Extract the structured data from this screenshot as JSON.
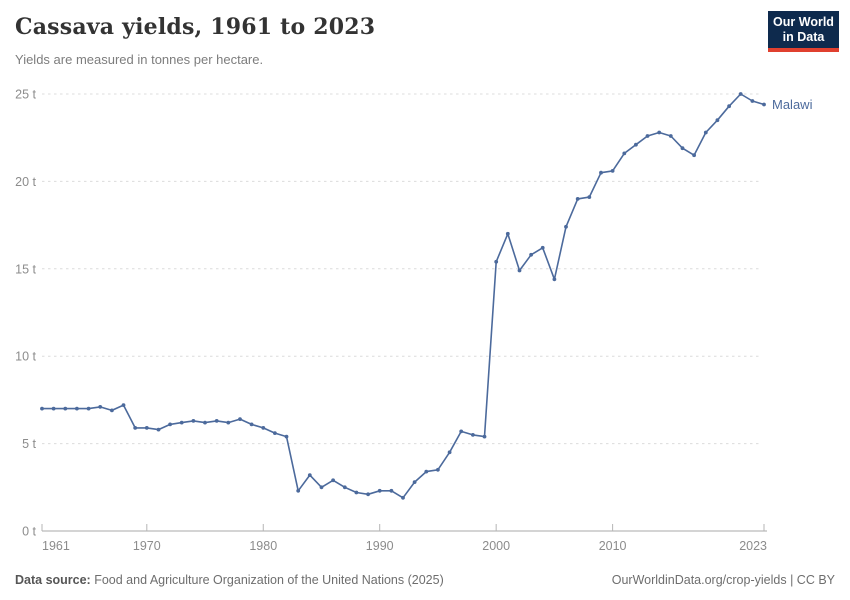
{
  "header": {
    "title": "Cassava yields, 1961 to 2023",
    "subtitle": "Yields are measured in tonnes per hectare."
  },
  "logo": {
    "line1": "Our World",
    "line2": "in Data"
  },
  "footer": {
    "source_label": "Data source:",
    "source_text": "Food and Agriculture Organization of the United Nations (2025)",
    "credit_link": "OurWorldinData.org/crop-yields",
    "credit_suffix": " | CC BY"
  },
  "colors": {
    "line": "#4c6a9c",
    "grid": "#dcdcdc",
    "axis": "#a8a8a8",
    "tick": "#b5b5b5",
    "tick_text": "#8c8c8c",
    "logo_bg": "#0e2a4d",
    "logo_accent": "#e0402f"
  },
  "chart_data": {
    "type": "line",
    "title": "Cassava yields, 1961 to 2023",
    "xlabel": "",
    "ylabel": "tonnes per hectare",
    "ylim": [
      0,
      25
    ],
    "grid": "horizontal-dashed",
    "legend_position": "end-of-line",
    "ytick_values": [
      0,
      5,
      10,
      15,
      20,
      25
    ],
    "ytick_labels": [
      "0 t",
      "5 t",
      "10 t",
      "15 t",
      "20 t",
      "25 t"
    ],
    "xtick_values": [
      1961,
      1970,
      1980,
      1990,
      2000,
      2010,
      2023
    ],
    "x": [
      1961,
      1962,
      1963,
      1964,
      1965,
      1966,
      1967,
      1968,
      1969,
      1970,
      1971,
      1972,
      1973,
      1974,
      1975,
      1976,
      1977,
      1978,
      1979,
      1980,
      1981,
      1982,
      1983,
      1984,
      1985,
      1986,
      1987,
      1988,
      1989,
      1990,
      1991,
      1992,
      1993,
      1994,
      1995,
      1996,
      1997,
      1998,
      1999,
      2000,
      2001,
      2002,
      2003,
      2004,
      2005,
      2006,
      2007,
      2008,
      2009,
      2010,
      2011,
      2012,
      2013,
      2014,
      2015,
      2016,
      2017,
      2018,
      2019,
      2020,
      2021,
      2022,
      2023
    ],
    "series": [
      {
        "name": "Malawi",
        "values": [
          7.0,
          7.0,
          7.0,
          7.0,
          7.0,
          7.1,
          6.9,
          7.2,
          5.9,
          5.9,
          5.8,
          6.1,
          6.2,
          6.3,
          6.2,
          6.3,
          6.2,
          6.4,
          6.1,
          5.9,
          5.6,
          5.4,
          2.3,
          3.2,
          2.5,
          2.9,
          2.5,
          2.2,
          2.1,
          2.3,
          2.3,
          1.9,
          2.8,
          3.4,
          3.5,
          4.5,
          5.7,
          5.5,
          5.4,
          15.4,
          17.0,
          14.9,
          15.8,
          16.2,
          14.4,
          17.4,
          19.0,
          19.1,
          20.5,
          20.6,
          21.6,
          22.1,
          22.6,
          22.8,
          22.6,
          21.9,
          21.5,
          22.8,
          23.5,
          24.3,
          25.0,
          24.6,
          24.4
        ]
      }
    ]
  }
}
